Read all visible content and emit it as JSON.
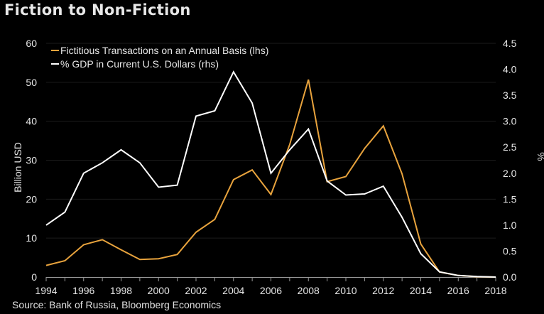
{
  "chart_data": {
    "type": "line",
    "title": "Fiction to Non-Fiction",
    "source": "Source: Bank of Russia, Bloomberg Economics",
    "x": [
      1994,
      1995,
      1996,
      1997,
      1998,
      1999,
      2000,
      2001,
      2002,
      2003,
      2004,
      2005,
      2006,
      2007,
      2008,
      2009,
      2010,
      2011,
      2012,
      2013,
      2014,
      2015,
      2016,
      2017,
      2018
    ],
    "xticks": [
      "1994",
      "1996",
      "1998",
      "2000",
      "2002",
      "2004",
      "2006",
      "2008",
      "2010",
      "2012",
      "2014",
      "2016",
      "2018"
    ],
    "xlim": [
      1994,
      2018
    ],
    "ylabel": "Billion USD",
    "ylim": [
      0,
      60
    ],
    "yticks": [
      "0",
      "10",
      "20",
      "30",
      "40",
      "50",
      "60"
    ],
    "y2label": "%",
    "y2lim": [
      0,
      4.5
    ],
    "y2ticks": [
      "0.0",
      "0.5",
      "1.0",
      "1.5",
      "2.0",
      "2.5",
      "3.0",
      "3.5",
      "4.0",
      "4.5"
    ],
    "grid": true,
    "legend_placement": "top-left",
    "series": [
      {
        "name": "Fictitious Transactions on an Annual Basis (lhs)",
        "axis": "left",
        "color": "#e8a33d",
        "values": [
          3.0,
          4.2,
          8.3,
          9.6,
          7.0,
          4.5,
          4.7,
          5.8,
          11.5,
          14.8,
          25.0,
          27.5,
          21.2,
          34.0,
          50.7,
          24.5,
          25.8,
          33.0,
          38.8,
          26.5,
          8.5,
          1.3,
          0.4,
          0.1,
          0.0
        ]
      },
      {
        "name": "% GDP in Current U.S. Dollars (rhs)",
        "axis": "right",
        "color": "#ffffff",
        "values": [
          1.0,
          1.25,
          2.0,
          2.2,
          2.45,
          2.2,
          1.73,
          1.77,
          3.1,
          3.2,
          3.95,
          3.35,
          2.0,
          2.45,
          2.85,
          1.85,
          1.58,
          1.6,
          1.75,
          1.15,
          0.45,
          0.1,
          0.03,
          0.01,
          0.0
        ]
      }
    ]
  }
}
